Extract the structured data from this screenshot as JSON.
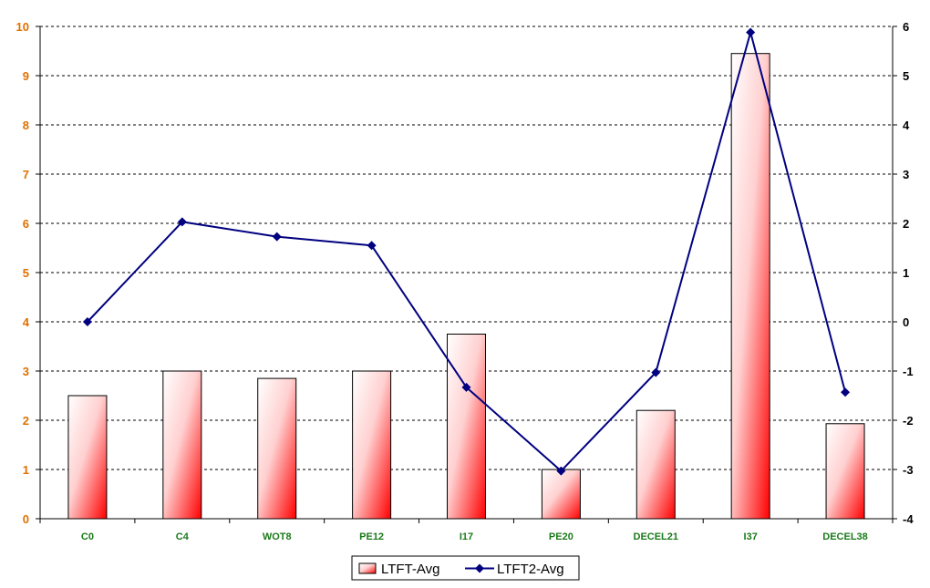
{
  "chart_data": {
    "type": "bar",
    "title": "",
    "xlabel": "",
    "ylabel": "",
    "categories": [
      "C0",
      "C4",
      "WOT8",
      "PE12",
      "I17",
      "PE20",
      "DECEL21",
      "I37",
      "DECEL38"
    ],
    "series": [
      {
        "name": "LTFT-Avg",
        "type": "bar",
        "axis": "left",
        "values": [
          2.5,
          3.0,
          2.85,
          3.0,
          3.75,
          1.0,
          2.2,
          9.45,
          1.93
        ]
      },
      {
        "name": "LTFT2-Avg",
        "type": "line",
        "axis": "right",
        "values": [
          0.0,
          2.03,
          1.73,
          1.55,
          -1.33,
          -3.03,
          -1.03,
          5.88,
          -1.43
        ]
      }
    ],
    "ylim": [
      0,
      10
    ],
    "y_ticks": [
      "0",
      "1",
      "2",
      "3",
      "4",
      "5",
      "6",
      "7",
      "8",
      "9",
      "10"
    ],
    "y2lim": [
      -4,
      6
    ],
    "y2_ticks": [
      "-4",
      "-3",
      "-2",
      "-1",
      "0",
      "1",
      "2",
      "3",
      "4",
      "5",
      "6"
    ],
    "grid": true,
    "legend": "bottom-center",
    "colors": {
      "bar_fill_light": "#ffffff",
      "bar_fill_dark": "#ff0000",
      "line": "#000080",
      "left_axis_text": "#e07000",
      "right_axis_text": "#000000",
      "x_axis_text": "#1a7a1a"
    }
  }
}
